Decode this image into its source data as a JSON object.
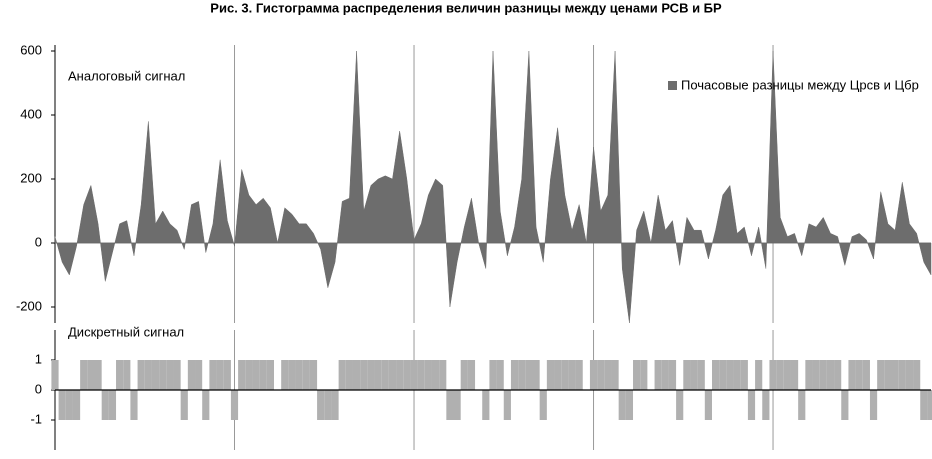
{
  "chart_data": [
    {
      "type": "area",
      "title": "Рис. 3. Гистограмма распределения величин разницы между ценами РСВ и БР",
      "annotation": "Аналоговый сигнал",
      "legend": "top-right",
      "series": [
        {
          "name": "Почасовые разницы между Црсв и Цбр",
          "color": "#6d6d6d",
          "values": [
            20,
            -60,
            -100,
            -10,
            120,
            180,
            60,
            -120,
            -30,
            60,
            70,
            -40,
            120,
            380,
            60,
            100,
            60,
            40,
            -20,
            120,
            130,
            -30,
            60,
            260,
            70,
            -10,
            230,
            150,
            120,
            140,
            110,
            0,
            110,
            90,
            60,
            60,
            30,
            -20,
            -140,
            -60,
            130,
            140,
            600,
            100,
            180,
            200,
            210,
            200,
            350,
            200,
            10,
            60,
            150,
            200,
            180,
            -200,
            -60,
            50,
            140,
            0,
            -80,
            600,
            100,
            -40,
            50,
            200,
            600,
            50,
            -60,
            200,
            360,
            150,
            40,
            120,
            0,
            300,
            100,
            150,
            600,
            -80,
            -250,
            40,
            100,
            0,
            150,
            40,
            70,
            -70,
            80,
            40,
            40,
            -50,
            40,
            150,
            180,
            30,
            50,
            -40,
            50,
            -80,
            600,
            80,
            20,
            30,
            -40,
            60,
            50,
            80,
            30,
            20,
            -70,
            20,
            30,
            10,
            -50,
            160,
            60,
            40,
            190,
            60,
            30,
            -60,
            -100
          ]
        }
      ],
      "xlim": [
        0,
        122
      ],
      "xticks": [
        0,
        25,
        50,
        75,
        100
      ],
      "ylim": [
        -250,
        600
      ],
      "yticks": [
        -200,
        0,
        200,
        400,
        600
      ]
    },
    {
      "type": "bar",
      "annotation": "Дискретный сигнал",
      "color": "#b0b0b0",
      "values": [
        1,
        -1,
        -1,
        -1,
        1,
        1,
        1,
        -1,
        -1,
        1,
        1,
        -1,
        1,
        1,
        1,
        1,
        1,
        1,
        -1,
        1,
        1,
        -1,
        1,
        1,
        1,
        -1,
        1,
        1,
        1,
        1,
        1,
        0,
        1,
        1,
        1,
        1,
        1,
        -1,
        -1,
        -1,
        1,
        1,
        1,
        1,
        1,
        1,
        1,
        1,
        1,
        1,
        1,
        1,
        1,
        1,
        1,
        -1,
        -1,
        1,
        1,
        0,
        -1,
        1,
        1,
        -1,
        1,
        1,
        1,
        1,
        -1,
        1,
        1,
        1,
        1,
        1,
        0,
        1,
        1,
        1,
        1,
        -1,
        -1,
        1,
        1,
        0,
        1,
        1,
        1,
        -1,
        1,
        1,
        1,
        -1,
        1,
        1,
        1,
        1,
        1,
        -1,
        1,
        -1,
        1,
        1,
        1,
        1,
        -1,
        1,
        1,
        1,
        1,
        1,
        -1,
        1,
        1,
        1,
        -1,
        1,
        1,
        1,
        1,
        1,
        1,
        -1,
        -1
      ],
      "xlim": [
        0,
        122
      ],
      "xticks": [
        0,
        25,
        50,
        75,
        100
      ],
      "ylim": [
        -2,
        2
      ],
      "yticks": [
        -1,
        0,
        1
      ]
    }
  ]
}
